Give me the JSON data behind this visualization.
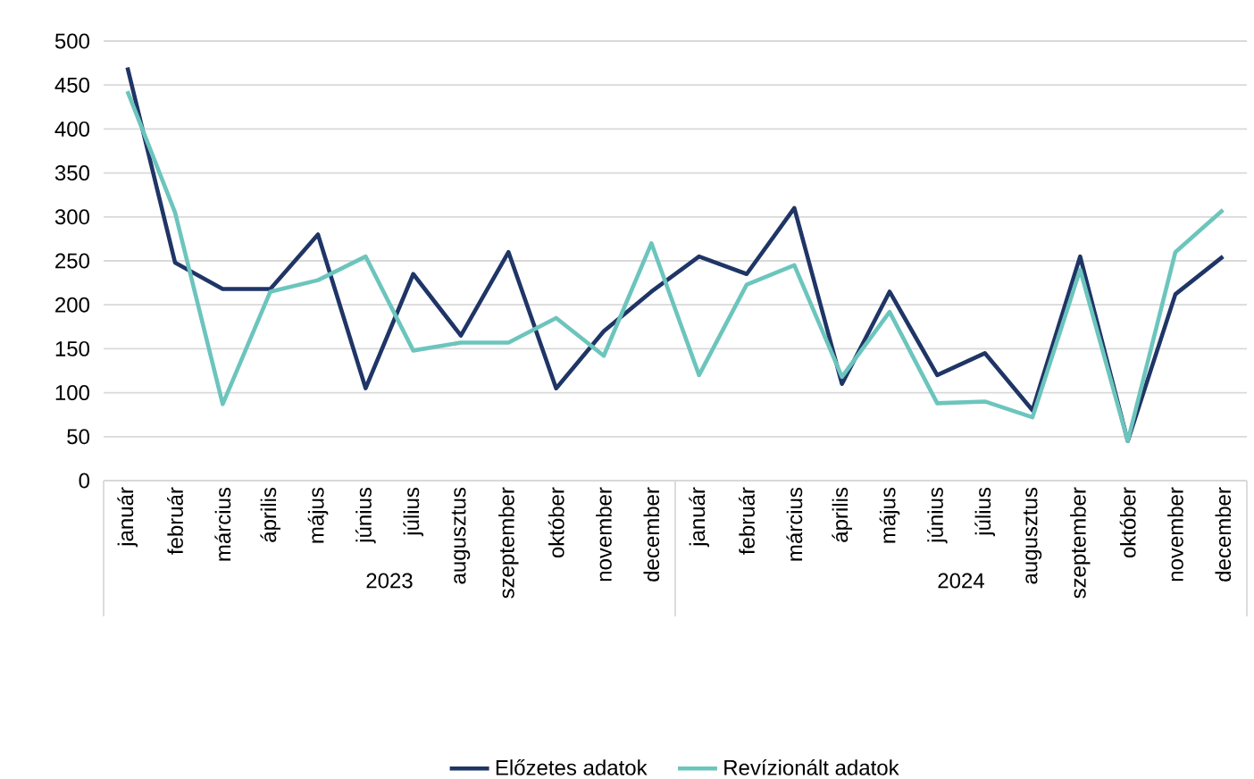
{
  "chart_data": {
    "type": "line",
    "categories": [
      "január",
      "február",
      "március",
      "április",
      "május",
      "június",
      "július",
      "augusztus",
      "szeptember",
      "október",
      "november",
      "december",
      "január",
      "február",
      "március",
      "április",
      "május",
      "június",
      "július",
      "augusztus",
      "szeptember",
      "október",
      "november",
      "december"
    ],
    "annotations": [
      "2023",
      "2024"
    ],
    "series": [
      {
        "name": "Előzetes adatok",
        "color": "#1f3566",
        "values": [
          470,
          248,
          218,
          218,
          280,
          105,
          235,
          165,
          260,
          105,
          170,
          215,
          255,
          235,
          310,
          110,
          215,
          120,
          145,
          80,
          255,
          45,
          212,
          255
        ]
      },
      {
        "name": "Revízionált adatok",
        "color": "#6cc5bd",
        "values": [
          443,
          305,
          87,
          215,
          228,
          255,
          148,
          157,
          157,
          185,
          142,
          270,
          120,
          223,
          245,
          118,
          192,
          88,
          90,
          72,
          240,
          45,
          260,
          308
        ]
      }
    ],
    "ylim": [
      0,
      500
    ],
    "yticks": [
      0,
      50,
      100,
      150,
      200,
      250,
      300,
      350,
      400,
      450,
      500
    ],
    "grid": "y",
    "legend": "bottom",
    "marker": "none",
    "line_style": "solid"
  }
}
